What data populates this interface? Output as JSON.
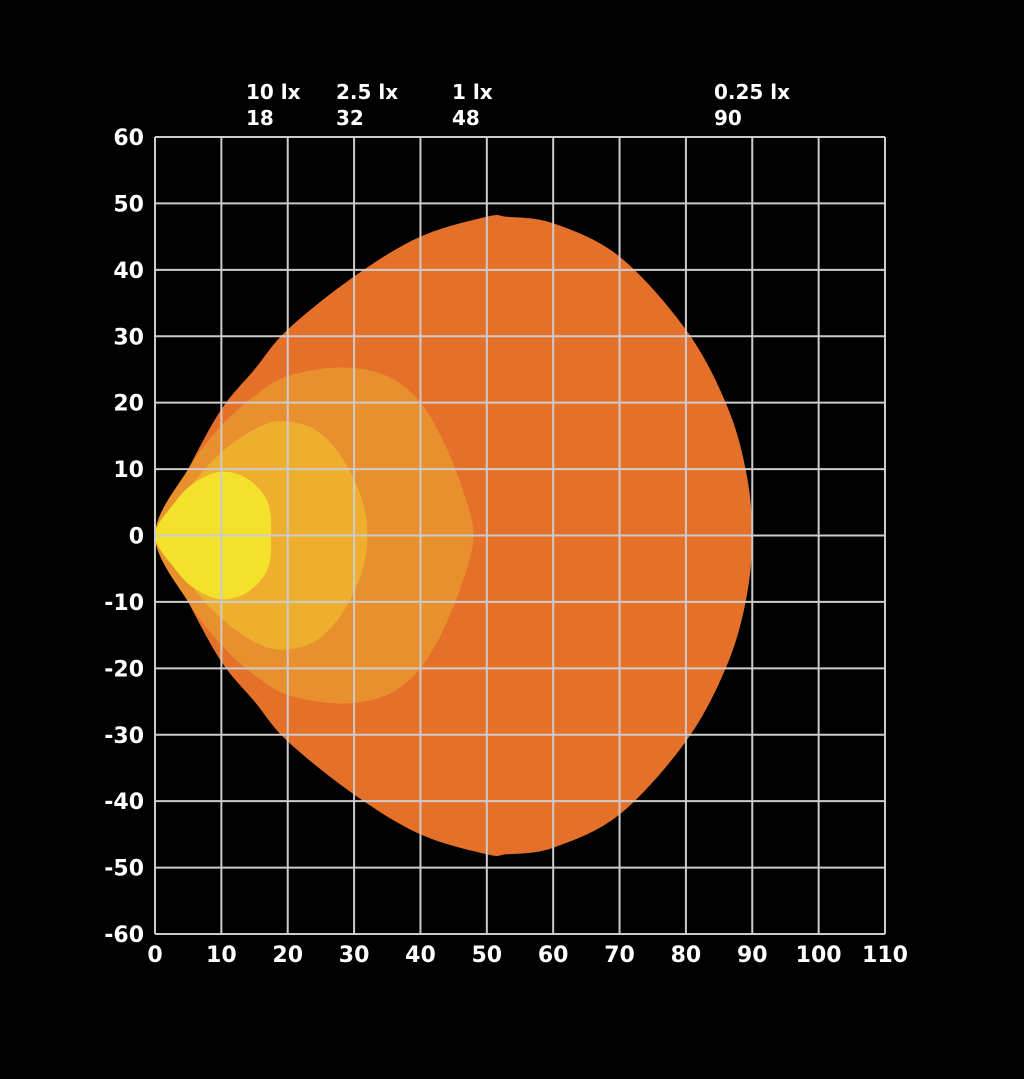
{
  "chart_data": {
    "type": "area",
    "title": "",
    "xlabel": "",
    "ylabel": "",
    "xlim": [
      0,
      110
    ],
    "ylim": [
      -60,
      60
    ],
    "x_ticks": [
      "0",
      "10",
      "20",
      "30",
      "40",
      "50",
      "60",
      "70",
      "80",
      "90",
      "100",
      "110"
    ],
    "y_ticks": [
      "60",
      "50",
      "40",
      "30",
      "20",
      "10",
      "0",
      "-10",
      "-20",
      "-30",
      "-40",
      "-50",
      "-60"
    ],
    "grid": true,
    "background": "#000000",
    "grid_color": "#cccccc",
    "zones": [
      {
        "name": "0.25 lx",
        "range_value": "90",
        "color": "#e5702a",
        "outline": [
          [
            0,
            0
          ],
          [
            5,
            10
          ],
          [
            10,
            19
          ],
          [
            15,
            25
          ],
          [
            20,
            31
          ],
          [
            30,
            39
          ],
          [
            40,
            45
          ],
          [
            50,
            48
          ],
          [
            53,
            48
          ],
          [
            60,
            47
          ],
          [
            70,
            42
          ],
          [
            80,
            31
          ],
          [
            86,
            20
          ],
          [
            89,
            10
          ],
          [
            90,
            0
          ],
          [
            89,
            -10
          ],
          [
            86,
            -20
          ],
          [
            80,
            -31
          ],
          [
            70,
            -42
          ],
          [
            60,
            -47
          ],
          [
            53,
            -48
          ],
          [
            50,
            -48
          ],
          [
            40,
            -45
          ],
          [
            30,
            -39
          ],
          [
            20,
            -31
          ],
          [
            15,
            -25
          ],
          [
            10,
            -19
          ],
          [
            5,
            -10
          ],
          [
            0,
            0
          ]
        ]
      },
      {
        "name": "1 lx",
        "range_value": "48",
        "color": "#e8902e",
        "outline": [
          [
            0,
            0
          ],
          [
            5,
            10
          ],
          [
            10,
            16.5
          ],
          [
            15,
            21
          ],
          [
            20,
            24
          ],
          [
            28,
            25.3
          ],
          [
            35,
            24
          ],
          [
            40,
            20
          ],
          [
            44,
            13
          ],
          [
            47,
            5
          ],
          [
            48,
            0
          ],
          [
            47,
            -5
          ],
          [
            44,
            -13
          ],
          [
            40,
            -20
          ],
          [
            35,
            -24
          ],
          [
            28,
            -25.3
          ],
          [
            20,
            -24
          ],
          [
            15,
            -21
          ],
          [
            10,
            -16.5
          ],
          [
            5,
            -10
          ],
          [
            0,
            0
          ]
        ]
      },
      {
        "name": "2.5 lx",
        "range_value": "32",
        "color": "#efaf2e",
        "outline": [
          [
            0,
            0
          ],
          [
            5,
            7
          ],
          [
            10,
            12.5
          ],
          [
            15,
            16
          ],
          [
            19,
            17.2
          ],
          [
            24,
            16
          ],
          [
            28,
            12
          ],
          [
            31,
            6
          ],
          [
            32,
            0
          ],
          [
            31,
            -6
          ],
          [
            28,
            -12
          ],
          [
            24,
            -16
          ],
          [
            19,
            -17.2
          ],
          [
            15,
            -16
          ],
          [
            10,
            -12.5
          ],
          [
            5,
            -7
          ],
          [
            0,
            0
          ]
        ]
      },
      {
        "name": "10 lx",
        "range_value": "18",
        "color": "#f4e12c",
        "outline": [
          [
            0,
            0
          ],
          [
            3,
            5
          ],
          [
            6,
            8
          ],
          [
            10,
            9.6
          ],
          [
            14,
            8.5
          ],
          [
            17,
            5
          ],
          [
            17.5,
            0
          ],
          [
            17,
            -5
          ],
          [
            14,
            -8.5
          ],
          [
            10,
            -9.6
          ],
          [
            6,
            -8
          ],
          [
            3,
            -5
          ],
          [
            0,
            0
          ]
        ]
      }
    ],
    "zone_labels": [
      {
        "lux": "10 lx",
        "range": "18"
      },
      {
        "lux": "2.5 lx",
        "range": "32"
      },
      {
        "lux": "1 lx",
        "range": "48"
      },
      {
        "lux": "0.25 lx",
        "range": "90"
      }
    ]
  }
}
